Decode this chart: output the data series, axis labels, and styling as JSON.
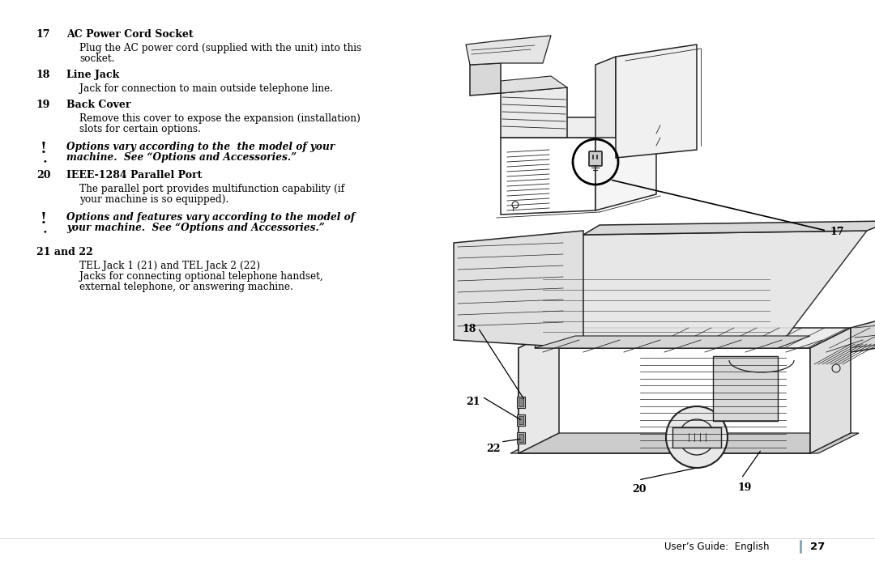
{
  "background_color": "#ffffff",
  "text_color": "#000000",
  "footer_text": "User’s Guide:  English",
  "footer_page": "27",
  "divider_color": "#7799aa",
  "note1_line1": "Options vary according to the  the model of your",
  "note1_line2": "machine.  See “Options and Accessories.”",
  "note2_line1": "Options and features vary according to the model of",
  "note2_line2": "your machine.  See “Options and Accessories.”",
  "sec21_body1": "TEL Jack 1 (21) and TEL Jack 2 (22)",
  "sec21_body2a": "Jacks for connecting optional telephone handset,",
  "sec21_body2b": "external telephone, or answering machine."
}
